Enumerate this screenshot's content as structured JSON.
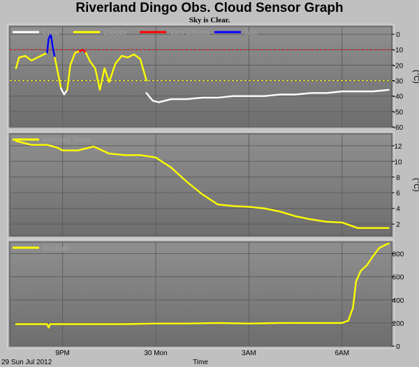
{
  "page": {
    "title": "Riverland Dingo Obs. Cloud Sensor Graph",
    "subtitle": "Sky is Clear."
  },
  "chart_data": [
    {
      "type": "line",
      "name": "cloud",
      "ylabel": "(°C)",
      "ylim": [
        -60,
        5
      ],
      "yticks": [
        0,
        -10,
        -20,
        -30,
        -40,
        -50,
        -60
      ],
      "thresholds": [
        {
          "value": -10,
          "color": "#ff0000"
        },
        {
          "value": -30,
          "color": "#ffff00"
        }
      ],
      "legend": [
        {
          "label": "Clear",
          "color": "#ffffff"
        },
        {
          "label": "Cloudy",
          "color": "#ffff00"
        },
        {
          "label": "Very Cloudy",
          "color": "#ff0000"
        },
        {
          "label": "Wet",
          "color": "#0000ff"
        }
      ],
      "series": [
        {
          "color": "#ffff00",
          "x": [
            19.5,
            19.6,
            19.8,
            20.0,
            20.2,
            20.4,
            20.5
          ],
          "y": [
            -22,
            -15,
            -14,
            -17,
            -15,
            -13,
            -12
          ]
        },
        {
          "color": "#0000ff",
          "x": [
            20.5,
            20.55,
            20.62,
            20.68,
            20.75
          ],
          "y": [
            -12,
            -3,
            0,
            -8,
            -15
          ]
        },
        {
          "color": "#ffff00",
          "x": [
            20.75,
            20.85,
            20.95
          ],
          "y": [
            -15,
            -25,
            -35
          ]
        },
        {
          "color": "#ffffff",
          "x": [
            20.95,
            21.05,
            21.15
          ],
          "y": [
            -35,
            -39,
            -36
          ]
        },
        {
          "color": "#ffff00",
          "x": [
            21.15,
            21.25,
            21.4,
            21.55
          ],
          "y": [
            -36,
            -20,
            -12,
            -11
          ]
        },
        {
          "color": "#ff0000",
          "x": [
            21.55,
            21.65,
            21.75
          ],
          "y": [
            -11,
            -10,
            -12
          ]
        },
        {
          "color": "#ffff00",
          "x": [
            21.75,
            21.9,
            22.05,
            22.2,
            22.35,
            22.5,
            22.7,
            22.9,
            23.1,
            23.3,
            23.5,
            23.7
          ],
          "y": [
            -12,
            -18,
            -22,
            -36,
            -22,
            -31,
            -19,
            -14,
            -15,
            -13,
            -16,
            -30
          ]
        },
        {
          "color": "#ffffff",
          "x": [
            23.7,
            23.9,
            24.1,
            24.5,
            25.0,
            25.5,
            26.0,
            26.5,
            27.0,
            27.5,
            28.0,
            28.5,
            29.0,
            29.5,
            30.0,
            30.5,
            31.0,
            31.5
          ],
          "y": [
            -38,
            -43,
            -44,
            -42,
            -42,
            -41,
            -41,
            -40,
            -40,
            -40,
            -39,
            -39,
            -38,
            -38,
            -37,
            -37,
            -37,
            -36
          ]
        }
      ]
    },
    {
      "type": "line",
      "name": "ambient",
      "ylabel": "(°C)",
      "ylim": [
        0.5,
        13.5
      ],
      "yticks": [
        2,
        4,
        6,
        8,
        10,
        12
      ],
      "legend": [
        {
          "label": "Ambient Temp",
          "color": "#ffff00"
        }
      ],
      "series": [
        {
          "color": "#ffff00",
          "x": [
            19.5,
            20.0,
            20.5,
            20.8,
            21.0,
            21.5,
            22.0,
            22.5,
            23.0,
            23.5,
            24.0,
            24.5,
            25.0,
            25.5,
            26.0,
            26.5,
            27.0,
            27.5,
            28.0,
            28.5,
            29.0,
            29.5,
            30.0,
            30.5,
            31.0,
            31.5
          ],
          "y": [
            12.6,
            12.1,
            12.1,
            11.8,
            11.4,
            11.4,
            11.9,
            11.0,
            10.8,
            10.8,
            10.5,
            9.2,
            7.4,
            5.8,
            4.5,
            4.3,
            4.2,
            4.0,
            3.6,
            3.0,
            2.6,
            2.3,
            2.2,
            1.5,
            1.5,
            1.5
          ]
        }
      ]
    },
    {
      "type": "line",
      "name": "daylight",
      "ylabel": "",
      "ylim": [
        0,
        900
      ],
      "yticks": [
        0,
        200,
        400,
        600,
        800
      ],
      "legend": [
        {
          "label": "Daylight",
          "color": "#ffff00"
        }
      ],
      "series": [
        {
          "color": "#ffff00",
          "x": [
            19.5,
            20.0,
            20.5,
            20.55,
            20.6,
            21.0,
            22.0,
            23.0,
            24.0,
            25.0,
            26.0,
            27.0,
            28.0,
            29.0,
            30.0,
            30.2,
            30.35,
            30.45,
            30.6,
            30.8,
            31.0,
            31.2,
            31.5
          ],
          "y": [
            190,
            190,
            190,
            160,
            190,
            190,
            190,
            190,
            195,
            195,
            200,
            195,
            200,
            200,
            200,
            220,
            330,
            560,
            650,
            700,
            780,
            850,
            890
          ]
        }
      ]
    }
  ],
  "x_axis": {
    "range": [
      19.3,
      31.6
    ],
    "ticks": [
      {
        "x": 21,
        "label": "9PM"
      },
      {
        "x": 24,
        "label": "30 Mon"
      },
      {
        "x": 27,
        "label": "3AM"
      },
      {
        "x": 30,
        "label": "6AM"
      }
    ],
    "label": "Time",
    "date_label": "29 Sun Jul 2012"
  }
}
